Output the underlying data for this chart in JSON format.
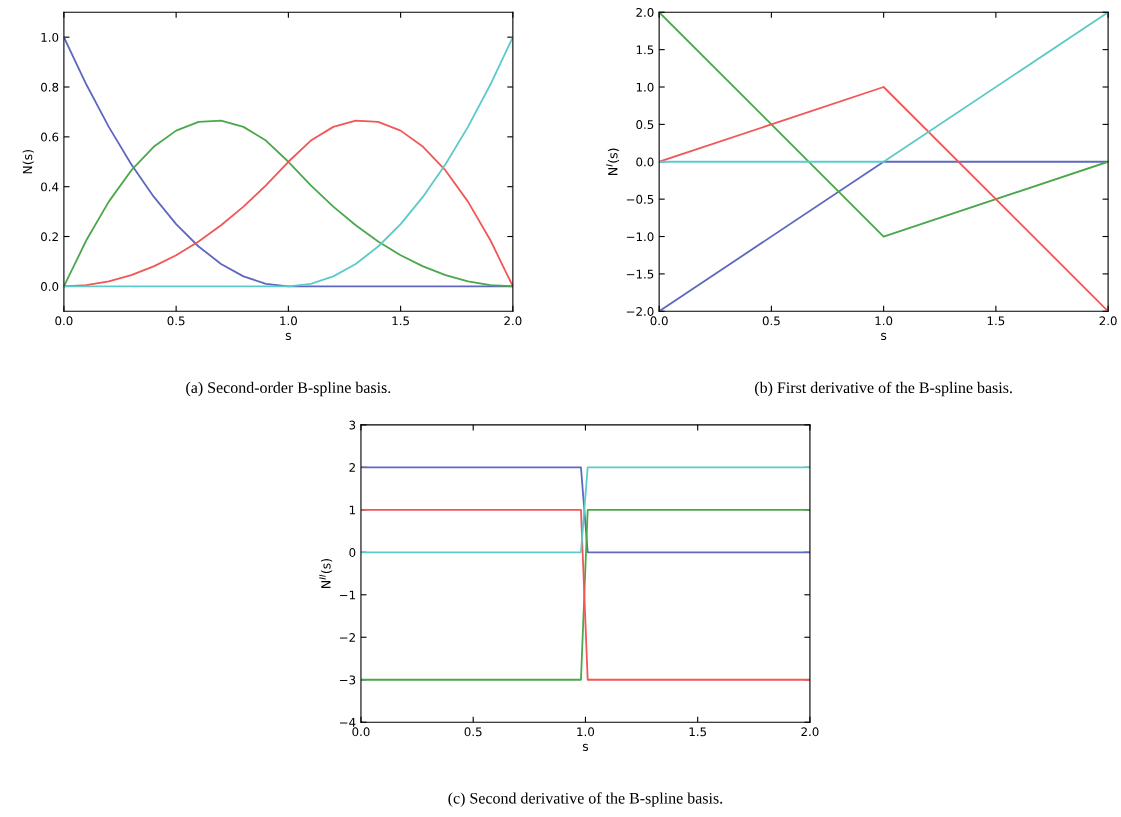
{
  "chart_data": [
    {
      "type": "line",
      "xlabel": "s",
      "ylabel": "N(s)",
      "annotations": [
        "(a) Second-order B-spline basis."
      ],
      "x": [
        0.0,
        0.1,
        0.2,
        0.3,
        0.4,
        0.5,
        0.6,
        0.7,
        0.8,
        0.9,
        1.0,
        1.1,
        1.2,
        1.3,
        1.4,
        1.5,
        1.6,
        1.7,
        1.8,
        1.9,
        2.0
      ],
      "xlim": [
        0,
        2
      ],
      "xticks": [
        {
          "value": 0,
          "label": "0.0"
        },
        {
          "value": 0.5,
          "label": "0.5"
        },
        {
          "value": 1,
          "label": "1.0"
        },
        {
          "value": 1.5,
          "label": "1.5"
        },
        {
          "value": 2,
          "label": "2.0"
        }
      ],
      "ylim": [
        -0.1,
        1.1
      ],
      "yticks": [
        {
          "value": 0,
          "label": "0.0"
        },
        {
          "value": 0.2,
          "label": "0.2"
        },
        {
          "value": 0.4,
          "label": "0.4"
        },
        {
          "value": 0.6,
          "label": "0.6"
        },
        {
          "value": 0.8,
          "label": "0.8"
        },
        {
          "value": 1,
          "label": "1.0"
        }
      ],
      "series": [
        {
          "color": "#5f68c0",
          "values": [
            1,
            0.81,
            0.64,
            0.49,
            0.36,
            0.25,
            0.16,
            0.09,
            0.04,
            0.01,
            0,
            0,
            0,
            0,
            0,
            0,
            0,
            0,
            0,
            0,
            0
          ]
        },
        {
          "color": "#4aa84a",
          "values": [
            0,
            0.185,
            0.34,
            0.465,
            0.56,
            0.625,
            0.66,
            0.665,
            0.64,
            0.585,
            0.5,
            0.405,
            0.32,
            0.245,
            0.18,
            0.125,
            0.08,
            0.045,
            0.02,
            0.005,
            0
          ]
        },
        {
          "color": "#f25656",
          "values": [
            0,
            0.005,
            0.02,
            0.045,
            0.08,
            0.125,
            0.18,
            0.245,
            0.32,
            0.405,
            0.5,
            0.585,
            0.64,
            0.665,
            0.66,
            0.625,
            0.56,
            0.465,
            0.34,
            0.185,
            0
          ]
        },
        {
          "color": "#5ccaca",
          "values": [
            0,
            0,
            0,
            0,
            0,
            0,
            0,
            0,
            0,
            0,
            0,
            0.01,
            0.04,
            0.09,
            0.16,
            0.25,
            0.36,
            0.49,
            0.64,
            0.81,
            1
          ]
        }
      ]
    },
    {
      "type": "line",
      "xlabel": "s",
      "ylabel": "N$^{I}$(s)",
      "annotations": [
        "(b) First derivative of the B-spline basis."
      ],
      "x": [
        0,
        1,
        2
      ],
      "xlim": [
        0,
        2
      ],
      "xticks": [
        {
          "value": 0,
          "label": "0.0"
        },
        {
          "value": 0.5,
          "label": "0.5"
        },
        {
          "value": 1,
          "label": "1.0"
        },
        {
          "value": 1.5,
          "label": "1.5"
        },
        {
          "value": 2,
          "label": "2.0"
        }
      ],
      "ylim": [
        -2,
        2
      ],
      "yticks": [
        {
          "value": -2,
          "label": "−2.0"
        },
        {
          "value": -1.5,
          "label": "−1.5"
        },
        {
          "value": -1,
          "label": "−1.0"
        },
        {
          "value": -0.5,
          "label": "−0.5"
        },
        {
          "value": 0,
          "label": "0.0"
        },
        {
          "value": 0.5,
          "label": "0.5"
        },
        {
          "value": 1,
          "label": "1.0"
        },
        {
          "value": 1.5,
          "label": "1.5"
        },
        {
          "value": 2,
          "label": "2.0"
        }
      ],
      "series": [
        {
          "color": "#5f68c0",
          "values": [
            -2,
            0,
            0
          ]
        },
        {
          "color": "#4aa84a",
          "values": [
            2,
            -1,
            0
          ]
        },
        {
          "color": "#f25656",
          "values": [
            0,
            1,
            -2
          ]
        },
        {
          "color": "#5ccaca",
          "values": [
            0,
            0,
            2
          ]
        }
      ]
    },
    {
      "type": "line",
      "xlabel": "s",
      "ylabel": "N$^{II}$(s)",
      "annotations": [
        "(c) Second derivative of the B-spline basis."
      ],
      "x": [
        0,
        0.98,
        1.01,
        2
      ],
      "xlim": [
        0,
        2
      ],
      "xticks": [
        {
          "value": 0,
          "label": "0.0"
        },
        {
          "value": 0.5,
          "label": "0.5"
        },
        {
          "value": 1,
          "label": "1.0"
        },
        {
          "value": 1.5,
          "label": "1.5"
        },
        {
          "value": 2,
          "label": "2.0"
        }
      ],
      "ylim": [
        -4,
        3
      ],
      "yticks": [
        {
          "value": -4,
          "label": "−4"
        },
        {
          "value": -3,
          "label": "−3"
        },
        {
          "value": -2,
          "label": "−2"
        },
        {
          "value": -1,
          "label": "−1"
        },
        {
          "value": 0,
          "label": "0"
        },
        {
          "value": 1,
          "label": "1"
        },
        {
          "value": 2,
          "label": "2"
        },
        {
          "value": 3,
          "label": "3"
        }
      ],
      "series": [
        {
          "color": "#5f68c0",
          "values": [
            2,
            2,
            0,
            0
          ]
        },
        {
          "color": "#4aa84a",
          "values": [
            -3,
            -3,
            1,
            1
          ]
        },
        {
          "color": "#f25656",
          "values": [
            1,
            1,
            -3,
            -3
          ]
        },
        {
          "color": "#5ccaca",
          "values": [
            0,
            0,
            2,
            2
          ]
        }
      ]
    }
  ]
}
